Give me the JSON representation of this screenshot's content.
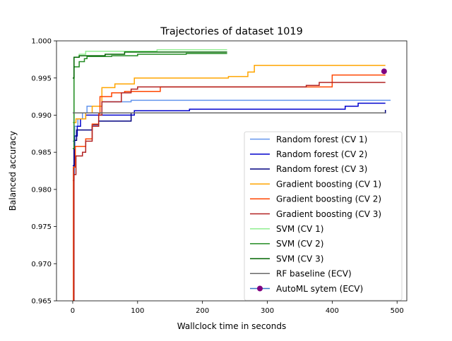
{
  "chart_data": {
    "type": "line",
    "title": "Trajectories of dataset 1019",
    "xlabel": "Wallclock time in seconds",
    "ylabel": "Balanced accuracy",
    "xlim": [
      -25,
      515
    ],
    "ylim": [
      0.965,
      1.0
    ],
    "x_ticks": [
      0,
      100,
      200,
      300,
      400,
      500
    ],
    "y_ticks": [
      0.965,
      0.97,
      0.975,
      0.98,
      0.985,
      0.99,
      0.995,
      1.0
    ],
    "x_tick_labels": [
      "0",
      "100",
      "200",
      "300",
      "400",
      "500"
    ],
    "y_tick_labels": [
      "0.965",
      "0.970",
      "0.975",
      "0.980",
      "0.985",
      "0.990",
      "0.995",
      "1.000"
    ],
    "grid": false,
    "legend_position": "lower-right",
    "series": [
      {
        "name": "Random forest (CV 1)",
        "color": "#6495ED",
        "step": true,
        "points": [
          [
            0,
            0.9865
          ],
          [
            3,
            0.9885
          ],
          [
            8,
            0.9895
          ],
          [
            15,
            0.9903
          ],
          [
            22,
            0.9912
          ],
          [
            45,
            0.9918
          ],
          [
            90,
            0.992
          ],
          [
            490,
            0.992
          ]
        ]
      },
      {
        "name": "Random forest (CV 2)",
        "color": "#0000CD",
        "step": true,
        "points": [
          [
            0,
            0.9832
          ],
          [
            3,
            0.9872
          ],
          [
            7,
            0.9885
          ],
          [
            12,
            0.9895
          ],
          [
            20,
            0.99
          ],
          [
            95,
            0.9906
          ],
          [
            180,
            0.9908
          ],
          [
            420,
            0.9912
          ],
          [
            440,
            0.9916
          ],
          [
            482,
            0.9916
          ]
        ]
      },
      {
        "name": "Random forest (CV 3)",
        "color": "#000080",
        "step": true,
        "points": [
          [
            0,
            0.9812
          ],
          [
            2,
            0.9866
          ],
          [
            6,
            0.988
          ],
          [
            30,
            0.9887
          ],
          [
            40,
            0.9892
          ],
          [
            90,
            0.9903
          ],
          [
            482,
            0.9907
          ]
        ]
      },
      {
        "name": "Gradient boosting (CV 1)",
        "color": "#FFA500",
        "step": true,
        "points": [
          [
            0,
            0.989
          ],
          [
            5,
            0.9895
          ],
          [
            20,
            0.9903
          ],
          [
            30,
            0.9912
          ],
          [
            45,
            0.9937
          ],
          [
            65,
            0.9942
          ],
          [
            95,
            0.995
          ],
          [
            240,
            0.9952
          ],
          [
            270,
            0.9958
          ],
          [
            280,
            0.9967
          ],
          [
            482,
            0.9967
          ]
        ]
      },
      {
        "name": "Gradient boosting (CV 2)",
        "color": "#FF4500",
        "step": true,
        "points": [
          [
            0,
            0.9648
          ],
          [
            1,
            0.983
          ],
          [
            4,
            0.9858
          ],
          [
            20,
            0.9868
          ],
          [
            30,
            0.9888
          ],
          [
            40,
            0.9902
          ],
          [
            42,
            0.9925
          ],
          [
            60,
            0.993
          ],
          [
            80,
            0.9932
          ],
          [
            110,
            0.9932
          ],
          [
            135,
            0.9938
          ],
          [
            360,
            0.9938
          ],
          [
            400,
            0.9954
          ],
          [
            482,
            0.9954
          ]
        ]
      },
      {
        "name": "Gradient boosting (CV 3)",
        "color": "#B22222",
        "step": true,
        "points": [
          [
            0,
            0.9648
          ],
          [
            2,
            0.982
          ],
          [
            5,
            0.9845
          ],
          [
            15,
            0.985
          ],
          [
            20,
            0.9865
          ],
          [
            30,
            0.9885
          ],
          [
            40,
            0.99
          ],
          [
            45,
            0.9918
          ],
          [
            75,
            0.993
          ],
          [
            90,
            0.9935
          ],
          [
            100,
            0.9938
          ],
          [
            360,
            0.994
          ],
          [
            380,
            0.9944
          ],
          [
            482,
            0.9944
          ]
        ]
      },
      {
        "name": "SVM (CV 1)",
        "color": "#90EE90",
        "step": true,
        "points": [
          [
            0,
            0.989
          ],
          [
            2,
            0.9978
          ],
          [
            10,
            0.9982
          ],
          [
            20,
            0.9986
          ],
          [
            130,
            0.9988
          ],
          [
            238,
            0.9988
          ]
        ]
      },
      {
        "name": "SVM (CV 2)",
        "color": "#228B22",
        "step": true,
        "points": [
          [
            0,
            0.9855
          ],
          [
            2,
            0.9965
          ],
          [
            10,
            0.9972
          ],
          [
            18,
            0.9976
          ],
          [
            22,
            0.9979
          ],
          [
            60,
            0.998
          ],
          [
            100,
            0.9982
          ],
          [
            175,
            0.9983
          ],
          [
            238,
            0.9983
          ]
        ]
      },
      {
        "name": "SVM (CV 3)",
        "color": "#006400",
        "step": true,
        "points": [
          [
            0,
            0.995
          ],
          [
            2,
            0.9978
          ],
          [
            10,
            0.998
          ],
          [
            50,
            0.9982
          ],
          [
            80,
            0.9985
          ],
          [
            238,
            0.9985
          ]
        ]
      },
      {
        "name": "RF baseline (ECV)",
        "color": "#696969",
        "step": true,
        "points": [
          [
            0,
            0.9903
          ],
          [
            482,
            0.9903
          ]
        ]
      },
      {
        "name": "AutoML sytem (ECV)",
        "color": "#3778C8",
        "marker": "circle",
        "marker_color": "#800080",
        "points": [
          [
            480,
            0.9959
          ]
        ]
      }
    ]
  }
}
